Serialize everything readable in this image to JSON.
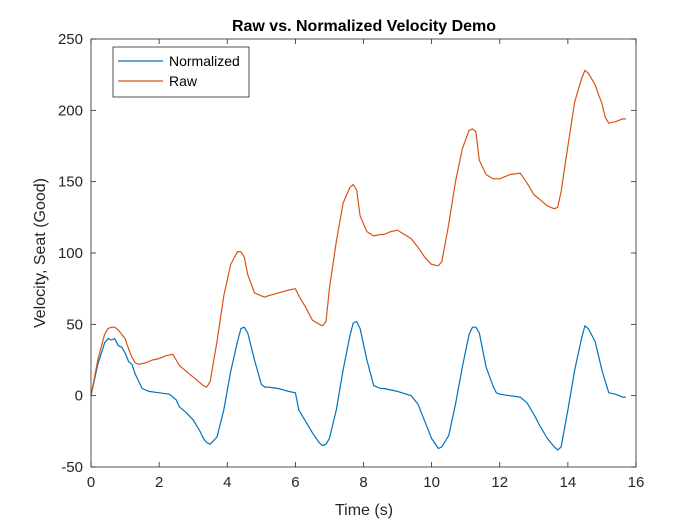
{
  "chart_data": {
    "type": "line",
    "title": "Raw vs. Normalized Velocity Demo",
    "xlabel": "Time (s)",
    "ylabel": "Velocity, Seat (Good)",
    "xlim": [
      0,
      16
    ],
    "ylim": [
      -50,
      250
    ],
    "xticks": [
      0,
      2,
      4,
      6,
      8,
      10,
      12,
      14,
      16
    ],
    "yticks": [
      -50,
      0,
      50,
      100,
      150,
      200,
      250
    ],
    "xtick_labels": [
      "0",
      "2",
      "4",
      "6",
      "8",
      "10",
      "12",
      "14",
      "16"
    ],
    "ytick_labels": [
      "-50",
      "0",
      "50",
      "100",
      "150",
      "200",
      "250"
    ],
    "grid": false,
    "legend_position": "top-left",
    "series": [
      {
        "name": "Normalized",
        "color": "#0072BD",
        "x": [
          0,
          0.2,
          0.4,
          0.5,
          0.6,
          0.7,
          0.8,
          0.9,
          1.0,
          1.1,
          1.2,
          1.3,
          1.4,
          1.5,
          1.7,
          2.0,
          2.3,
          2.5,
          2.6,
          2.8,
          3.0,
          3.2,
          3.3,
          3.4,
          3.5,
          3.7,
          3.9,
          4.1,
          4.3,
          4.4,
          4.5,
          4.6,
          4.8,
          5.0,
          5.1,
          5.2,
          5.5,
          5.8,
          6.0,
          6.1,
          6.3,
          6.5,
          6.7,
          6.8,
          6.9,
          7.0,
          7.2,
          7.4,
          7.6,
          7.7,
          7.8,
          7.9,
          8.1,
          8.3,
          8.5,
          8.6,
          8.8,
          9.0,
          9.4,
          9.6,
          9.8,
          10.0,
          10.2,
          10.3,
          10.5,
          10.7,
          10.9,
          11.1,
          11.2,
          11.3,
          11.4,
          11.6,
          11.8,
          11.9,
          12.0,
          12.3,
          12.6,
          12.8,
          13.0,
          13.2,
          13.4,
          13.6,
          13.7,
          13.8,
          14.0,
          14.2,
          14.4,
          14.5,
          14.6,
          14.8,
          14.9,
          15.0,
          15.1,
          15.2,
          15.4,
          15.6,
          15.7
        ],
        "values": [
          0,
          22,
          37,
          40,
          39,
          40,
          35,
          34,
          30,
          24,
          22,
          15,
          10,
          5,
          3,
          2,
          1,
          -3,
          -8,
          -12,
          -17,
          -25,
          -30,
          -33,
          -34,
          -29,
          -10,
          17,
          38,
          47,
          48,
          44,
          25,
          8,
          6,
          6,
          5,
          3,
          2,
          -10,
          -18,
          -26,
          -33,
          -35,
          -34,
          -30,
          -10,
          18,
          42,
          51,
          52,
          47,
          25,
          7,
          5,
          5,
          4,
          3,
          0,
          -6,
          -18,
          -30,
          -37,
          -36,
          -28,
          -6,
          20,
          43,
          48,
          48,
          44,
          20,
          7,
          2,
          1,
          0,
          -1,
          -5,
          -13,
          -22,
          -30,
          -36,
          -38,
          -36,
          -10,
          18,
          40,
          49,
          47,
          38,
          28,
          18,
          10,
          2,
          1,
          -1,
          -1
        ]
      },
      {
        "name": "Raw",
        "color": "#D95319",
        "x": [
          0,
          0.2,
          0.4,
          0.5,
          0.6,
          0.7,
          0.8,
          0.9,
          1.0,
          1.1,
          1.2,
          1.3,
          1.4,
          1.6,
          1.8,
          2.0,
          2.2,
          2.4,
          2.5,
          2.6,
          2.8,
          3.0,
          3.2,
          3.3,
          3.4,
          3.5,
          3.7,
          3.9,
          4.1,
          4.3,
          4.4,
          4.5,
          4.6,
          4.8,
          5.0,
          5.1,
          5.2,
          5.5,
          5.8,
          6.0,
          6.1,
          6.3,
          6.5,
          6.7,
          6.8,
          6.9,
          7.0,
          7.2,
          7.4,
          7.6,
          7.7,
          7.8,
          7.9,
          8.1,
          8.3,
          8.5,
          8.6,
          8.8,
          9.0,
          9.4,
          9.6,
          9.8,
          10.0,
          10.2,
          10.3,
          10.5,
          10.7,
          10.9,
          11.1,
          11.2,
          11.3,
          11.4,
          11.6,
          11.8,
          11.9,
          12.0,
          12.3,
          12.6,
          12.8,
          13.0,
          13.2,
          13.4,
          13.6,
          13.7,
          13.8,
          14.0,
          14.2,
          14.4,
          14.5,
          14.6,
          14.8,
          14.9,
          15.0,
          15.1,
          15.2,
          15.4,
          15.6,
          15.7
        ],
        "values": [
          0,
          25,
          43,
          47,
          48,
          48,
          46,
          43,
          40,
          33,
          27,
          23,
          22,
          23,
          25,
          26,
          28,
          29,
          25,
          21,
          17,
          13,
          9,
          7,
          6,
          10,
          38,
          70,
          92,
          101,
          101,
          97,
          85,
          72,
          70,
          69,
          70,
          72,
          74,
          75,
          70,
          62,
          53,
          50,
          49,
          52,
          75,
          108,
          135,
          146,
          148,
          144,
          126,
          115,
          112,
          113,
          113,
          115,
          116,
          110,
          104,
          97,
          92,
          91,
          94,
          120,
          150,
          173,
          186,
          187,
          185,
          165,
          155,
          152,
          152,
          152,
          155,
          156,
          149,
          141,
          137,
          133,
          131,
          132,
          143,
          175,
          206,
          222,
          228,
          226,
          218,
          211,
          205,
          195,
          191,
          192,
          194,
          194
        ]
      }
    ]
  }
}
